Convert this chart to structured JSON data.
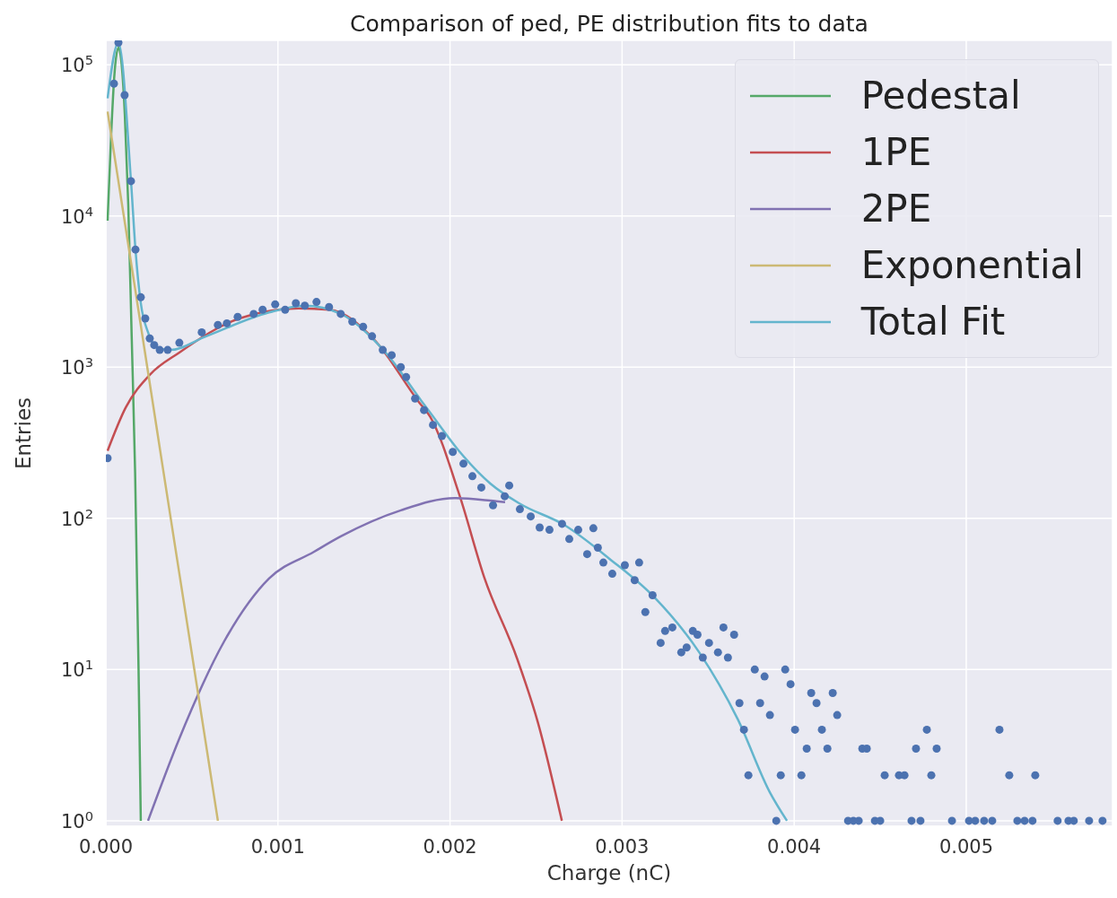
{
  "chart_data": {
    "type": "line",
    "title": "Comparison of ped, PE distribution fits to data",
    "xlabel": "Charge (nC)",
    "ylabel": "Entries",
    "xlim": [
      0,
      0.00585
    ],
    "ylim": [
      0.92,
      145000
    ],
    "log": "y",
    "grid": true,
    "legend": "top right",
    "line_style": "solid",
    "xticks": [
      {
        "value": 0,
        "label": "0.000"
      },
      {
        "value": 0.001,
        "label": "0.001"
      },
      {
        "value": 0.002,
        "label": "0.002"
      },
      {
        "value": 0.003,
        "label": "0.003"
      },
      {
        "value": 0.004,
        "label": "0.004"
      },
      {
        "value": 0.005,
        "label": "0.005"
      }
    ],
    "yticks": [
      {
        "value": 1,
        "label": "10$^{0}$"
      },
      {
        "value": 10,
        "label": "10$^{1}$"
      },
      {
        "value": 100,
        "label": "10$^{2}$"
      },
      {
        "value": 1000,
        "label": "10$^{3}$"
      },
      {
        "value": 10000,
        "label": "10$^{4}$"
      },
      {
        "value": 100000,
        "label": "10$^{5}$"
      }
    ],
    "series": [
      {
        "type": "scatter",
        "marker": "circle",
        "color": "#4c72b0",
        "x": [
          1e-05,
          4.7e-05,
          7.3e-05,
          0.000109,
          0.000146,
          0.000172,
          0.000203,
          0.000229,
          0.000255,
          0.000281,
          0.000313,
          0.000359,
          0.000427,
          0.000557,
          0.000651,
          0.000703,
          0.000766,
          0.000859,
          0.000911,
          0.000984,
          0.001042,
          0.001104,
          0.001156,
          0.001224,
          0.001297,
          0.001365,
          0.001432,
          0.001495,
          0.001547,
          0.001609,
          0.001661,
          0.001714,
          0.001745,
          0.001797,
          0.001849,
          0.001901,
          0.001953,
          0.002016,
          0.002078,
          0.00213,
          0.002182,
          0.00225,
          0.002318,
          0.002344,
          0.002406,
          0.002469,
          0.002521,
          0.002578,
          0.002651,
          0.002693,
          0.002745,
          0.002797,
          0.002833,
          0.002859,
          0.002891,
          0.002943,
          0.003016,
          0.003073,
          0.003099,
          0.003135,
          0.003177,
          0.003224,
          0.00325,
          0.003292,
          0.003344,
          0.003375,
          0.003411,
          0.003438,
          0.003469,
          0.003505,
          0.003557,
          0.003589,
          0.003615,
          0.003651,
          0.003682,
          0.003708,
          0.003734,
          0.003771,
          0.003802,
          0.003828,
          0.003859,
          0.003896,
          0.003922,
          0.003948,
          0.003979,
          0.004005,
          0.004042,
          0.004073,
          0.004099,
          0.00413,
          0.004161,
          0.004193,
          0.004224,
          0.00425,
          0.004313,
          0.004344,
          0.004375,
          0.004396,
          0.004422,
          0.004469,
          0.0045,
          0.004526,
          0.004609,
          0.004641,
          0.004682,
          0.004708,
          0.004734,
          0.004771,
          0.004797,
          0.004828,
          0.004917,
          0.005016,
          0.005052,
          0.005104,
          0.005151,
          0.005193,
          0.00525,
          0.005297,
          0.005339,
          0.005385,
          0.005401,
          0.005531,
          0.005594,
          0.005625,
          0.005714,
          0.005792
        ],
        "values": [
          250,
          75000,
          140000,
          63000,
          17000,
          6000,
          2900,
          2100,
          1550,
          1400,
          1300,
          1300,
          1450,
          1700,
          1900,
          1950,
          2150,
          2250,
          2400,
          2600,
          2400,
          2650,
          2550,
          2700,
          2500,
          2250,
          2000,
          1850,
          1600,
          1300,
          1200,
          1000,
          860,
          620,
          520,
          415,
          350,
          275,
          230,
          190,
          160,
          122,
          140,
          165,
          115,
          103,
          87,
          84,
          92,
          73,
          84,
          58,
          86,
          64,
          51,
          43,
          49,
          39,
          51,
          24,
          31,
          15,
          18,
          19,
          13,
          14,
          18,
          17,
          12,
          15,
          13,
          19,
          12,
          17,
          6,
          4,
          2,
          10,
          6,
          9,
          5,
          1,
          2,
          10,
          8,
          4,
          2,
          3,
          7,
          6,
          4,
          3,
          7,
          5,
          1,
          1,
          1,
          3,
          3,
          1,
          1,
          2,
          2,
          2,
          1,
          3,
          1,
          4,
          2,
          3,
          1,
          1,
          1,
          1,
          1,
          4,
          2,
          1,
          1,
          1,
          2,
          1,
          1,
          1,
          1,
          1
        ]
      },
      {
        "name": "Pedestal",
        "color": "#55a868",
        "x": [
          1e-05,
          3e-05,
          5e-05,
          7.3e-05,
          9e-05,
          0.00011,
          0.00013,
          0.00015,
          0.00017,
          0.00019,
          0.000203
        ],
        "values": [
          9300,
          33000,
          87000,
          130000,
          105000,
          47000,
          12000,
          1600,
          200,
          10,
          1
        ]
      },
      {
        "name": "1PE",
        "color": "#c44e52",
        "x": [
          1e-05,
          0.000115,
          0.000255,
          0.000427,
          0.000776,
          0.00112,
          0.0013,
          0.001557,
          0.001818,
          0.001885,
          0.002057,
          0.002198,
          0.00239,
          0.00251,
          0.00265
        ],
        "values": [
          280,
          540,
          890,
          1250,
          2100,
          2450,
          2400,
          1530,
          590,
          470,
          140,
          41,
          11.8,
          4.5,
          1
        ]
      },
      {
        "name": "2PE",
        "color": "#8172b2",
        "x": [
          0.000245,
          0.000427,
          0.000688,
          0.000948,
          0.001208,
          0.001365,
          0.001714,
          0.002026,
          0.002234,
          0.00232
        ],
        "values": [
          1,
          3.5,
          15.4,
          40,
          60,
          76,
          113,
          136,
          131,
          128
        ]
      },
      {
        "name": "Exponential",
        "color": "#ccb974",
        "x": [
          1e-05,
          0.00017,
          0.00033,
          0.00049,
          0.000651
        ],
        "values": [
          49000,
          3300,
          220,
          15,
          1
        ]
      },
      {
        "name": "Total Fit",
        "color": "#64b5cd",
        "x": [
          1e-05,
          7.3e-05,
          0.000146,
          0.000172,
          0.000203,
          0.000245,
          0.000297,
          0.000375,
          0.000583,
          0.000948,
          0.001156,
          0.001365,
          0.001625,
          0.001833,
          0.001885,
          0.002057,
          0.002234,
          0.002406,
          0.002667,
          0.002927,
          0.003188,
          0.003448,
          0.003672,
          0.003859,
          0.003958
        ],
        "values": [
          60000,
          140000,
          17000,
          6000,
          2650,
          1700,
          1350,
          1300,
          1600,
          2300,
          2550,
          2250,
          1250,
          600,
          500,
          275,
          170,
          125,
          90,
          54,
          30,
          13,
          4.7,
          1.54,
          1
        ]
      }
    ]
  }
}
